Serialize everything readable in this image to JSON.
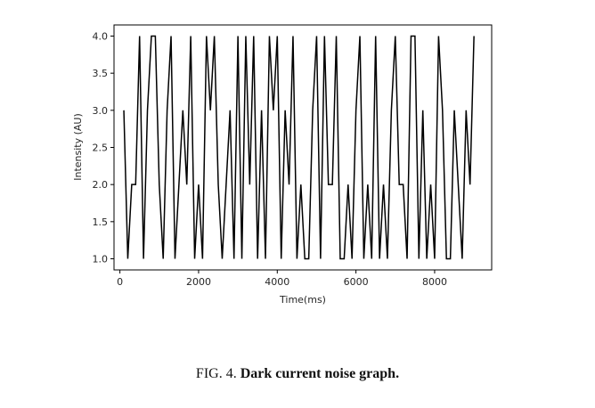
{
  "chart_data": {
    "type": "line",
    "xlabel": "Time(ms)",
    "ylabel": "Intensity (AU)",
    "xlim": [
      -150,
      9450
    ],
    "ylim": [
      0.85,
      4.15
    ],
    "x_ticks": [
      0,
      2000,
      4000,
      6000,
      8000
    ],
    "x_tick_labels": [
      "0",
      "2000",
      "4000",
      "6000",
      "8000"
    ],
    "y_ticks": [
      1.0,
      1.5,
      2.0,
      2.5,
      3.0,
      3.5,
      4.0
    ],
    "y_tick_labels": [
      "1.0",
      "1.5",
      "2.0",
      "2.5",
      "3.0",
      "3.5",
      "4.0"
    ],
    "grid": false,
    "line_color": "#000000",
    "series": [
      {
        "x": [
          100,
          200,
          300,
          400,
          500,
          600,
          700,
          800,
          900,
          1000,
          1100,
          1200,
          1300,
          1400,
          1500,
          1600,
          1700,
          1800,
          1900,
          2000,
          2100,
          2200,
          2300,
          2400,
          2500,
          2600,
          2700,
          2800,
          2900,
          3000,
          3100,
          3200,
          3300,
          3400,
          3500,
          3600,
          3700,
          3800,
          3900,
          4000,
          4100,
          4200,
          4300,
          4400,
          4500,
          4600,
          4700,
          4800,
          4900,
          5000,
          5100,
          5200,
          5300,
          5400,
          5500,
          5600,
          5700,
          5800,
          5900,
          6000,
          6100,
          6200,
          6300,
          6400,
          6500,
          6600,
          6700,
          6800,
          6900,
          7000,
          7100,
          7200,
          7300,
          7400,
          7500,
          7600,
          7700,
          7800,
          7900,
          8000,
          8100,
          8200,
          8300,
          8400,
          8500,
          8600,
          8700,
          8800,
          8900,
          9000
        ],
        "y": [
          3,
          1,
          2,
          2,
          4,
          1,
          3,
          4,
          4,
          2,
          1,
          3,
          4,
          1,
          2,
          3,
          2,
          4,
          1,
          2,
          1,
          4,
          3,
          4,
          2,
          1,
          2,
          3,
          1,
          4,
          1,
          4,
          2,
          4,
          1,
          3,
          1,
          4,
          3,
          4,
          1,
          3,
          2,
          4,
          1,
          2,
          1,
          1,
          3,
          4,
          1,
          4,
          2,
          2,
          4,
          1,
          1,
          2,
          1,
          3,
          4,
          1,
          2,
          1,
          4,
          1,
          2,
          1,
          3,
          4,
          2,
          2,
          1,
          4,
          4,
          1,
          3,
          1,
          2,
          1,
          4,
          3,
          1,
          1,
          3,
          2,
          1,
          3,
          2,
          4
        ]
      }
    ]
  },
  "caption": {
    "prefix": "FIG. 4. ",
    "title": "Dark current noise graph."
  }
}
